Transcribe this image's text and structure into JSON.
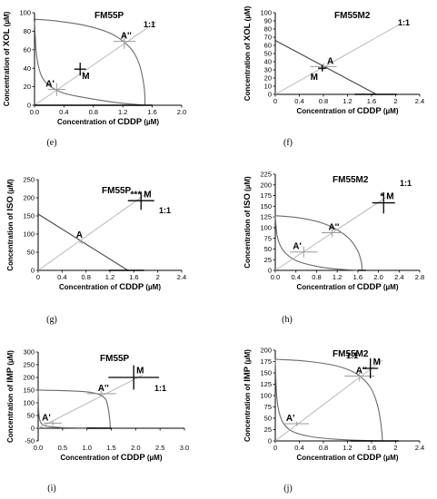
{
  "chart_data": [
    {
      "type": "line",
      "panel": "(e)",
      "title": "FM55P",
      "xlabel_prefix": "Concentration of ",
      "xlabel_drug": "CDDP",
      "xlabel_unit": " (µM)",
      "ylabel_prefix": "Concentration of ",
      "ylabel_drug": "XOL",
      "ylabel_unit": " (µM)",
      "xlim": [
        0,
        2.0
      ],
      "ylim": [
        0,
        100
      ],
      "xticks": [
        "0.0",
        "0.4",
        "0.8",
        "1.2",
        "1.6",
        "2.0"
      ],
      "yticks": [
        "0",
        "20",
        "40",
        "60",
        "80",
        "100"
      ],
      "series": [
        {
          "style": "curve",
          "x": [
            0,
            0.3,
            0.7,
            1.05,
            1.3,
            1.42,
            1.48,
            1.5,
            1.5
          ],
          "y": [
            93,
            91,
            86,
            77,
            62,
            45,
            25,
            10,
            0
          ]
        },
        {
          "style": "curve",
          "x": [
            0,
            0.02,
            0.06,
            0.12,
            0.22,
            0.4,
            0.7,
            1.1,
            1.5
          ],
          "y": [
            93,
            60,
            40,
            28,
            20,
            13,
            8,
            3,
            0
          ]
        },
        {
          "style": "diagonal",
          "x": [
            0,
            1.65
          ],
          "y": [
            0,
            90
          ]
        }
      ],
      "axis_intercept_bars": [
        {
          "axis": "x",
          "from": 0,
          "to": 1.6,
          "style": "thick"
        },
        {
          "axis": "y",
          "from": 90,
          "to": 97,
          "style": "dark"
        }
      ],
      "points": [
        {
          "label": "A'",
          "x": 0.3,
          "y": 17,
          "ex": 0.12,
          "ey": 7,
          "style": "thin"
        },
        {
          "label": "A''",
          "x": 1.22,
          "y": 69,
          "ex": 0.15,
          "ey": 8,
          "style": "thin"
        },
        {
          "label": "M",
          "x": 0.62,
          "y": 39,
          "ex": 0.08,
          "ey": 7,
          "style": "thick"
        }
      ],
      "ratio_label": "1:1",
      "caption": "(e)"
    },
    {
      "type": "line",
      "panel": "(f)",
      "title": "FM55M2",
      "xlabel_prefix": "Concentration of ",
      "xlabel_drug": "CDDP",
      "xlabel_unit": " (µM)",
      "ylabel_prefix": "Concentration of ",
      "ylabel_drug": "XOL",
      "ylabel_unit": " (µM)",
      "xlim": [
        0,
        2.4
      ],
      "ylim": [
        0,
        100
      ],
      "xticks": [
        "0",
        "0.4",
        "0.8",
        "1.2",
        "1.6",
        "2",
        "2.4"
      ],
      "yticks": [
        "0",
        "10",
        "20",
        "30",
        "40",
        "50",
        "60",
        "70",
        "80",
        "90",
        "100"
      ],
      "series": [
        {
          "style": "line",
          "x": [
            0,
            1.68
          ],
          "y": [
            66,
            0
          ]
        },
        {
          "style": "diagonal",
          "x": [
            0,
            2.05
          ],
          "y": [
            0,
            85
          ]
        }
      ],
      "axis_intercept_bars": [
        {
          "axis": "x",
          "from": 1.32,
          "to": 2.02,
          "style": "thick"
        },
        {
          "axis": "y",
          "from": 62,
          "to": 70,
          "style": "dark"
        }
      ],
      "points": [
        {
          "label": "A",
          "x": 0.8,
          "y": 34,
          "ex": 0.22,
          "ey": 4,
          "style": "thin"
        },
        {
          "label": "M",
          "x": 0.78,
          "y": 32,
          "ex": 0.07,
          "ey": 4,
          "style": "thick"
        }
      ],
      "ratio_label": "1:1",
      "caption": "(f)"
    },
    {
      "type": "line",
      "panel": "(g)",
      "title": "FM55P",
      "xlabel_prefix": "Concentration of ",
      "xlabel_drug": "CDDP",
      "xlabel_unit": " (µM)",
      "ylabel_prefix": "Concentration of ",
      "ylabel_drug": "ISO",
      "ylabel_unit": " (µM)",
      "xlim": [
        0,
        2.4
      ],
      "ylim": [
        0,
        250
      ],
      "xticks": [
        "0",
        "0.4",
        "0.8",
        "1.2",
        "1.6",
        "2",
        "2.4"
      ],
      "yticks": [
        "0",
        "50",
        "100",
        "150",
        "200",
        "250"
      ],
      "series": [
        {
          "style": "line",
          "x": [
            0,
            1.5
          ],
          "y": [
            155,
            0
          ]
        },
        {
          "style": "diagonal",
          "x": [
            0,
            1.9
          ],
          "y": [
            0,
            222
          ]
        }
      ],
      "axis_intercept_bars": [
        {
          "axis": "x",
          "from": 1.18,
          "to": 1.77,
          "style": "thick"
        },
        {
          "axis": "y",
          "from": 140,
          "to": 170,
          "style": "dark"
        }
      ],
      "points": [
        {
          "label": "A",
          "x": 0.74,
          "y": 77,
          "ex": 0.05,
          "ey": 4,
          "style": "thin"
        },
        {
          "label": "M",
          "x": 1.72,
          "y": 192,
          "ex": 0.22,
          "ey": 25,
          "style": "thick"
        }
      ],
      "significance": "***",
      "ratio_label": "1:1",
      "caption": "(g)"
    },
    {
      "type": "line",
      "panel": "(h)",
      "title": "FM55M2",
      "xlabel_prefix": "Concentration of ",
      "xlabel_drug": "CDDP",
      "xlabel_unit": " (µM)",
      "ylabel_prefix": "Concentration of ",
      "ylabel_drug": "ISO",
      "ylabel_unit": " (µM)",
      "xlim": [
        0,
        2.8
      ],
      "ylim": [
        0,
        225
      ],
      "xticks": [
        "0.0",
        "0.4",
        "0.8",
        "1.2",
        "1.6",
        "2.0",
        "2.4",
        "2.8"
      ],
      "yticks": [
        "0",
        "25",
        "50",
        "75",
        "100",
        "125",
        "150",
        "175",
        "200",
        "225"
      ],
      "series": [
        {
          "style": "curve",
          "x": [
            0,
            0.45,
            0.85,
            1.2,
            1.45,
            1.6,
            1.67,
            1.68
          ],
          "y": [
            128,
            123,
            113,
            95,
            72,
            45,
            18,
            0
          ]
        },
        {
          "style": "curve",
          "x": [
            0,
            0.03,
            0.09,
            0.2,
            0.42,
            0.78,
            1.2,
            1.68
          ],
          "y": [
            128,
            85,
            60,
            40,
            22,
            10,
            3,
            0
          ]
        },
        {
          "style": "diagonal",
          "x": [
            0,
            2.2
          ],
          "y": [
            0,
            175
          ]
        }
      ],
      "axis_intercept_bars": [
        {
          "axis": "x",
          "from": 1.6,
          "to": 1.76,
          "style": "thick"
        }
      ],
      "points": [
        {
          "label": "A'",
          "x": 0.55,
          "y": 43,
          "ex": 0.27,
          "ey": 13,
          "style": "thin"
        },
        {
          "label": "A''",
          "x": 1.1,
          "y": 88,
          "ex": 0.2,
          "ey": 10,
          "style": "thin"
        },
        {
          "label": "M",
          "x": 2.1,
          "y": 158,
          "ex": 0.22,
          "ey": 25,
          "style": "thick"
        }
      ],
      "significance": "*",
      "ratio_label": "1:1",
      "caption": "(h)"
    },
    {
      "type": "line",
      "panel": "(i)",
      "title": "FM55P",
      "xlabel_prefix": "Concentration of ",
      "xlabel_drug": "CDDP",
      "xlabel_unit": " (µM)",
      "ylabel_prefix": "Concentration of ",
      "ylabel_drug": "IMP",
      "ylabel_unit": " (µM)",
      "xlim": [
        0,
        3.0
      ],
      "ylim": [
        -50,
        300
      ],
      "xticks": [
        "0.0",
        "0.5",
        "1.0",
        "1.5",
        "2.0",
        "2.5",
        "3.0"
      ],
      "yticks": [
        "-50",
        "0",
        "50",
        "100",
        "150",
        "200",
        "250",
        "300"
      ],
      "series": [
        {
          "style": "curve",
          "x": [
            0,
            0.5,
            0.95,
            1.22,
            1.38,
            1.44,
            1.47,
            1.48
          ],
          "y": [
            150,
            148,
            144,
            135,
            115,
            75,
            30,
            0
          ]
        },
        {
          "style": "curve",
          "x": [
            0,
            0.01,
            0.03,
            0.07,
            0.18,
            0.45,
            0.95,
            1.48
          ],
          "y": [
            150,
            70,
            35,
            18,
            8,
            3,
            1,
            0
          ]
        },
        {
          "style": "diagonal",
          "x": [
            0,
            2.15
          ],
          "y": [
            0,
            210
          ]
        }
      ],
      "axis_intercept_bars": [
        {
          "axis": "x",
          "from": 1.0,
          "to": 1.5,
          "style": "thick"
        }
      ],
      "points": [
        {
          "label": "A'",
          "x": 0.3,
          "y": 20,
          "ex": 0.18,
          "ey": 10,
          "style": "thin"
        },
        {
          "label": "A''",
          "x": 1.3,
          "y": 136,
          "ex": 0.3,
          "ey": 12,
          "style": "thin"
        },
        {
          "label": "M",
          "x": 1.96,
          "y": 200,
          "ex": 0.52,
          "ey": 48,
          "style": "thick"
        }
      ],
      "ratio_label": "1:1",
      "caption": "(i)"
    },
    {
      "type": "line",
      "panel": "(j)",
      "title": "FM55M2",
      "xlabel_prefix": "Concentration of ",
      "xlabel_drug": "CDDP",
      "xlabel_unit": " (µM)",
      "ylabel_prefix": "Concentration of ",
      "ylabel_drug": "IMP",
      "ylabel_unit": " (µM)",
      "xlim": [
        0,
        2.4
      ],
      "ylim": [
        0,
        200
      ],
      "xticks": [
        "0",
        "0.4",
        "0.8",
        "1.2",
        "1.6",
        "2",
        "2.4"
      ],
      "yticks": [
        "0",
        "25",
        "50",
        "75",
        "100",
        "125",
        "150",
        "175",
        "200"
      ],
      "series": [
        {
          "style": "curve",
          "x": [
            0,
            0.5,
            1.0,
            1.35,
            1.58,
            1.7,
            1.76,
            1.78
          ],
          "y": [
            180,
            176,
            166,
            148,
            118,
            78,
            32,
            0
          ]
        },
        {
          "style": "curve",
          "x": [
            0,
            0.02,
            0.06,
            0.14,
            0.3,
            0.62,
            1.1,
            1.78
          ],
          "y": [
            180,
            105,
            65,
            38,
            20,
            9,
            3,
            0
          ]
        },
        {
          "style": "diagonal",
          "x": [
            0,
            1.78
          ],
          "y": [
            0,
            178
          ]
        }
      ],
      "axis_intercept_bars": [
        {
          "axis": "x",
          "from": 1.25,
          "to": 2.05,
          "style": "thick"
        }
      ],
      "points": [
        {
          "label": "A'",
          "x": 0.36,
          "y": 38,
          "ex": 0.2,
          "ey": 5,
          "style": "thin"
        },
        {
          "label": "A''",
          "x": 1.4,
          "y": 143,
          "ex": 0.25,
          "ey": 12,
          "style": "thin"
        },
        {
          "label": "M",
          "x": 1.58,
          "y": 160,
          "ex": 0.13,
          "ey": 22,
          "style": "thick"
        }
      ],
      "ratio_label": "1:1",
      "caption": "(j)"
    }
  ]
}
